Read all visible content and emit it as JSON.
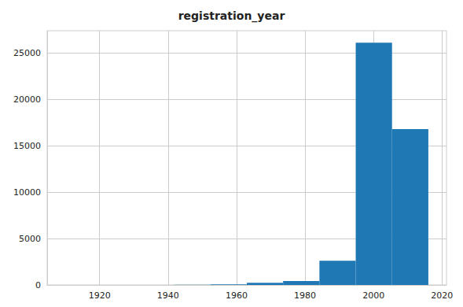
{
  "chart_data": {
    "type": "histogram",
    "title": "registration_year",
    "bins": [
      1910,
      1920.6,
      1931.2,
      1941.8,
      1952.4,
      1963,
      1973.6,
      1984.2,
      1994.8,
      2005.4,
      2016
    ],
    "values": [
      3,
      1,
      5,
      20,
      60,
      230,
      420,
      2600,
      26100,
      16800
    ],
    "color": "#1f77b4",
    "xlim": [
      1904.7,
      2021.3
    ],
    "xticks": [
      1920,
      1940,
      1960,
      1980,
      2000,
      2020
    ],
    "ylim": [
      0,
      27400
    ],
    "yticks": [
      0,
      5000,
      10000,
      15000,
      20000,
      25000
    ],
    "grid": true
  }
}
